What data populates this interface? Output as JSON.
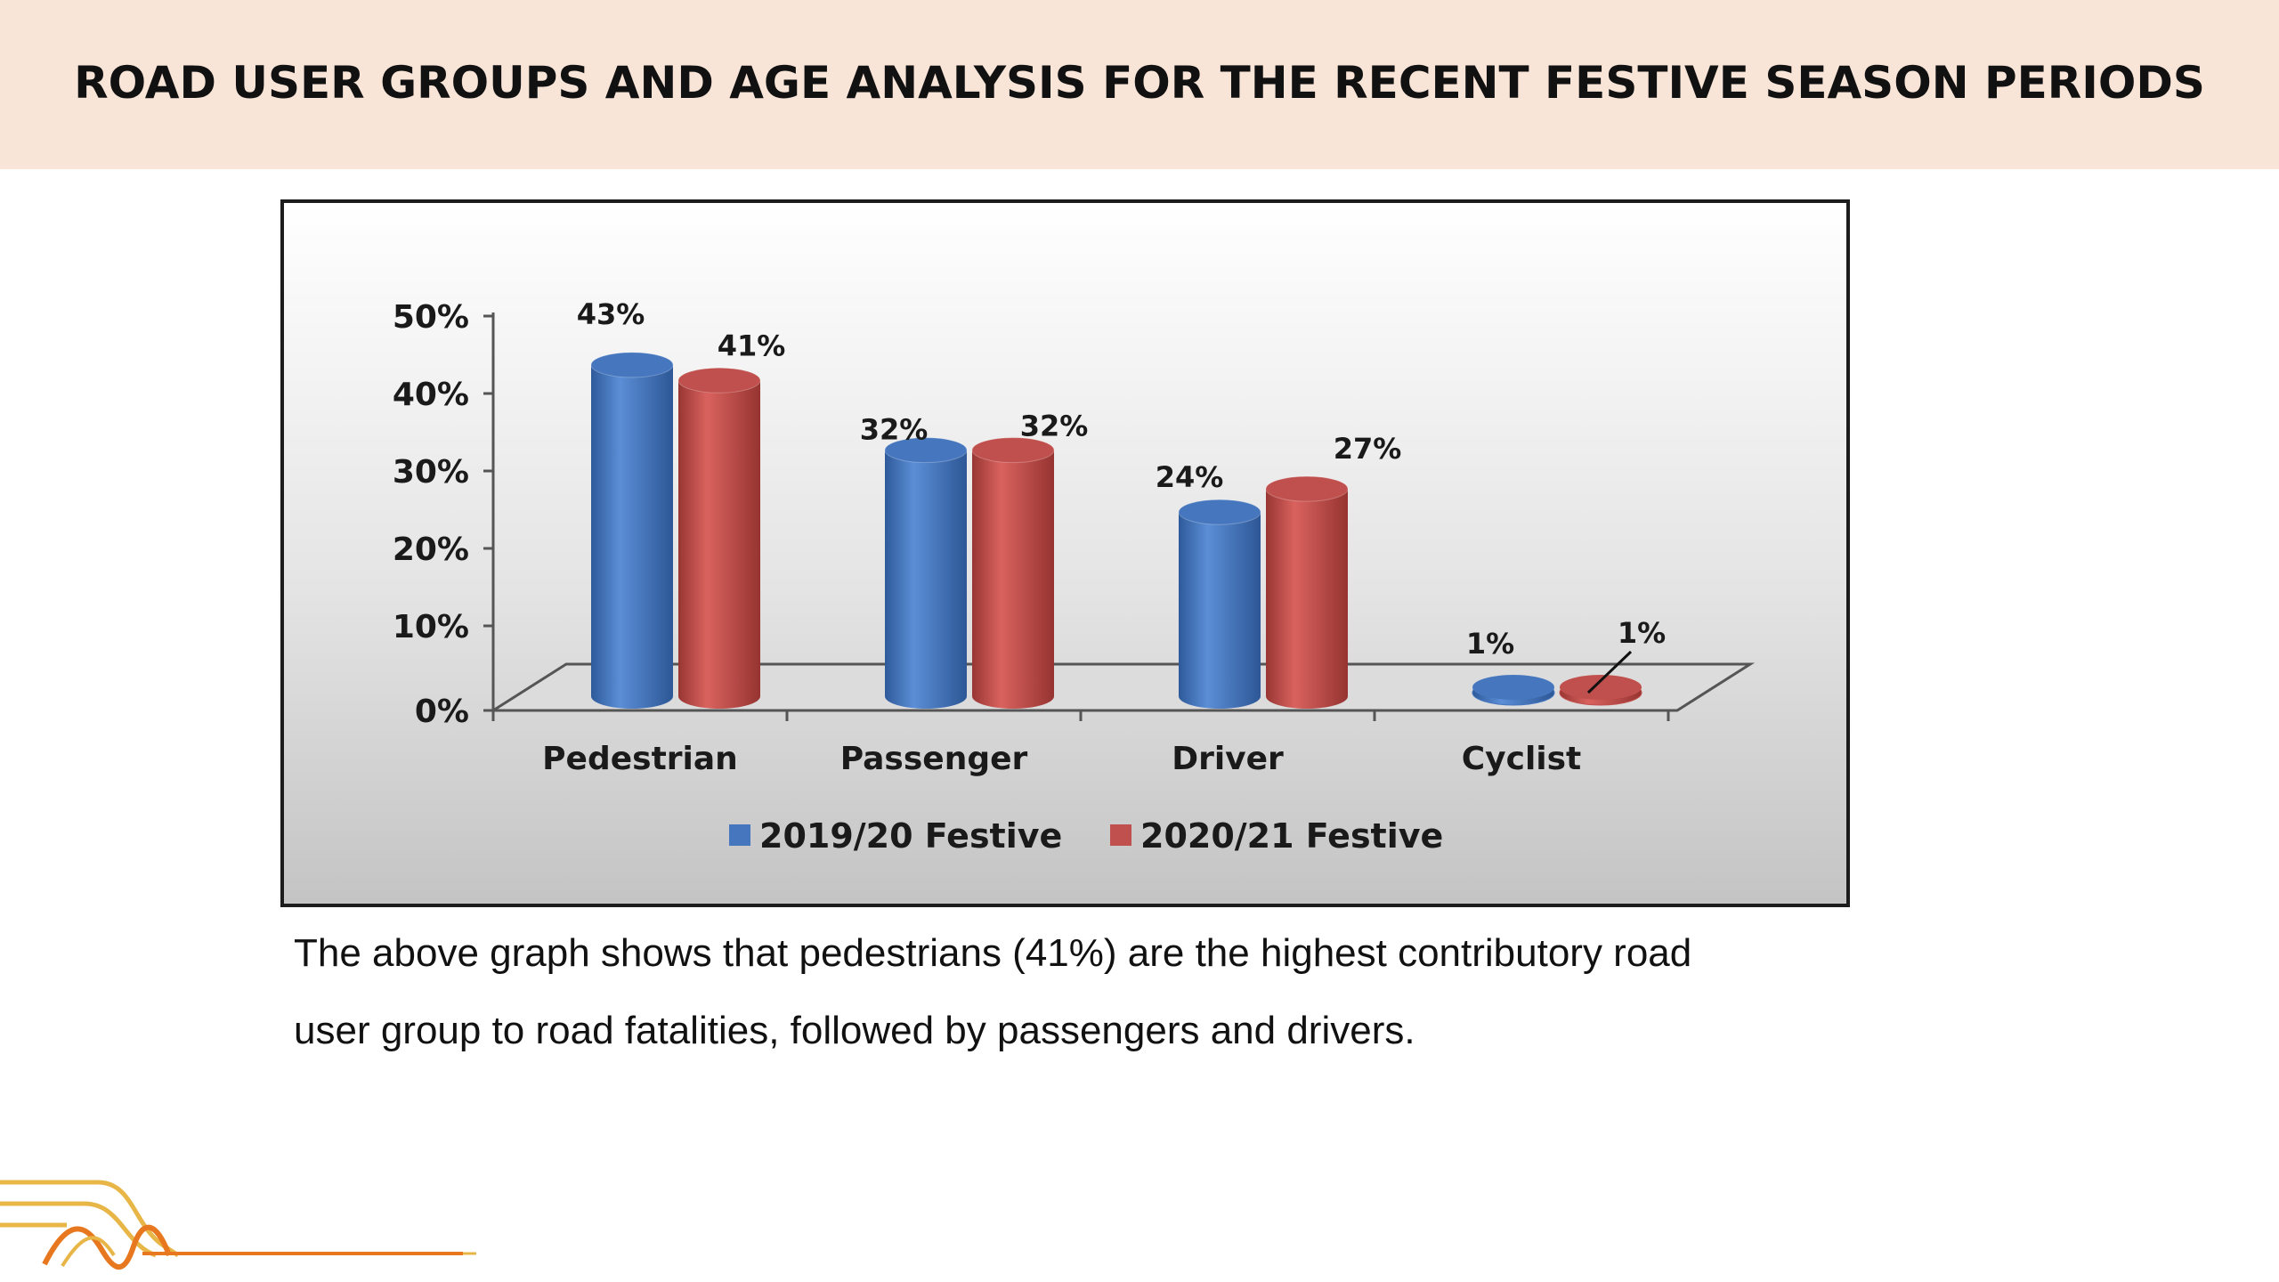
{
  "header": {
    "title": "ROAD USER GROUPS AND AGE ANALYSIS FOR THE RECENT FESTIVE SEASON PERIODS"
  },
  "chart_data": {
    "type": "bar",
    "style": "3d-cylinder",
    "categories": [
      "Pedestrian",
      "Passenger",
      "Driver",
      "Cyclist"
    ],
    "series": [
      {
        "name": "2019/20 Festive",
        "values": [
          43,
          32,
          24,
          1
        ],
        "labels": [
          "43%",
          "32%",
          "24%",
          "1%"
        ],
        "color": "#4677be"
      },
      {
        "name": "2020/21 Festive",
        "values": [
          41,
          32,
          27,
          1
        ],
        "labels": [
          "41%",
          "32%",
          "27%",
          "1%"
        ],
        "color": "#c0504d"
      }
    ],
    "yticks": [
      "0%",
      "10%",
      "20%",
      "30%",
      "40%",
      "50%"
    ],
    "ylim": [
      0,
      50
    ],
    "unit": "%",
    "legend_position": "bottom",
    "grid": false
  },
  "caption": {
    "line1": "The above graph shows that pedestrians (41%) are the highest contributory road",
    "line2": "user group to road fatalities, followed by passengers and drivers."
  },
  "colors": {
    "header_background": "#f9e4d8",
    "logo_orange": "#e8781f",
    "logo_gold": "#e8b547"
  },
  "logo": {
    "icon": "road-lines-logo-icon"
  }
}
